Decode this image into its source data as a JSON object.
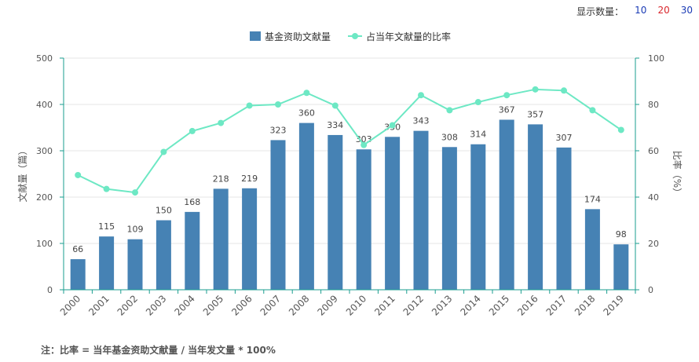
{
  "display_count": {
    "label": "显示数量：",
    "options": [
      {
        "text": "10",
        "color": "#1a3bb5"
      },
      {
        "text": "20",
        "color": "#d9262c"
      },
      {
        "text": "30",
        "color": "#1a3bb5"
      }
    ]
  },
  "legend": {
    "bar_label": "基金资助文献量",
    "line_label": "占当年文献量的比率"
  },
  "footnote": "注：比率 = 当年基金资助文献量 / 当年发文量 * 100%",
  "colors": {
    "bar": "#4682b4",
    "line": "#6de8c4",
    "axis": "#1a9e8f",
    "grid": "#e6e6e6"
  },
  "chart_data": {
    "type": "bar",
    "categories": [
      "2000",
      "2001",
      "2002",
      "2003",
      "2004",
      "2005",
      "2006",
      "2007",
      "2008",
      "2009",
      "2010",
      "2011",
      "2012",
      "2013",
      "2014",
      "2015",
      "2016",
      "2017",
      "2018",
      "2019"
    ],
    "series": [
      {
        "name": "基金资助文献量",
        "type": "bar",
        "axis": "left",
        "values": [
          66,
          115,
          109,
          150,
          168,
          218,
          219,
          323,
          360,
          334,
          303,
          330,
          343,
          308,
          314,
          367,
          357,
          307,
          174,
          98
        ]
      },
      {
        "name": "占当年文献量的比率",
        "type": "line",
        "axis": "right",
        "values": [
          49.5,
          43.5,
          42,
          59.5,
          68.5,
          72,
          79.5,
          80,
          85,
          79.5,
          62.5,
          71,
          84,
          77.5,
          81,
          84,
          86.5,
          86,
          77.5,
          69
        ]
      }
    ],
    "ylabel": "文献量（篇）",
    "y2label": "比率（%）",
    "ylim": [
      0,
      500
    ],
    "y2lim": [
      0,
      100
    ],
    "yticks": [
      0,
      100,
      200,
      300,
      400,
      500
    ],
    "y2ticks": [
      0,
      20,
      40,
      60,
      80,
      100
    ],
    "grid": true,
    "legend_position": "top-center"
  }
}
